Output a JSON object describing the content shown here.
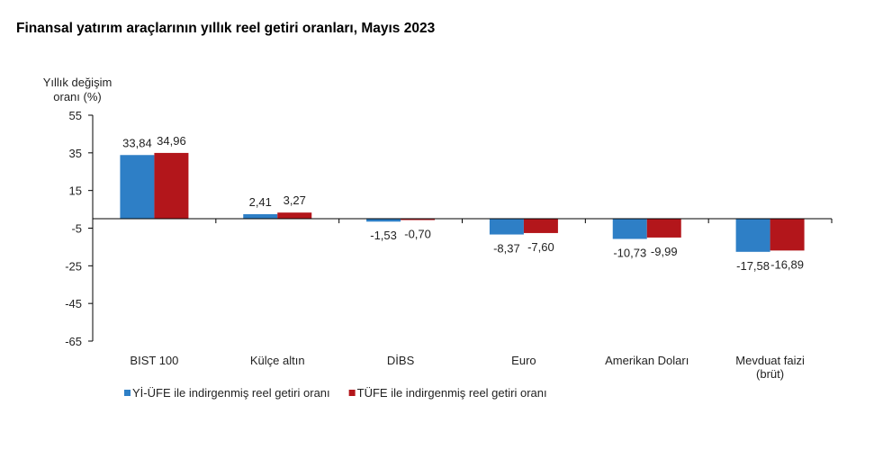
{
  "chart_data": {
    "type": "bar",
    "title": "Finansal yatırım araçlarının yıllık reel getiri oranları, Mayıs 2023",
    "ylabel": [
      "Yıllık değişim",
      "oranı (%)"
    ],
    "xlabel": "",
    "ylim": [
      -65,
      55
    ],
    "yticks": [
      55,
      35,
      15,
      -5,
      -25,
      -45,
      -65
    ],
    "grid": false,
    "legend_position": "bottom-left",
    "categories": [
      [
        "BIST 100"
      ],
      [
        "Külçe altın"
      ],
      [
        "DİBS"
      ],
      [
        "Euro"
      ],
      [
        "Amerikan Doları"
      ],
      [
        "Mevduat faizi",
        "(brüt)"
      ]
    ],
    "series": [
      {
        "name": "Yİ-ÜFE ile indirgenmiş reel getiri oranı",
        "color": "#2e7fc6",
        "values": [
          33.84,
          2.41,
          -1.53,
          -8.37,
          -10.73,
          -17.58
        ],
        "labels": [
          "33,84",
          "2,41",
          "-1,53",
          "-8,37",
          "-10,73",
          "-17,58"
        ]
      },
      {
        "name": "TÜFE ile indirgenmiş reel getiri oranı",
        "color": "#b3161b",
        "values": [
          34.96,
          3.27,
          -0.7,
          -7.6,
          -9.99,
          -16.89
        ],
        "labels": [
          "34,96",
          "3,27",
          "-0,70",
          "-7,60",
          "-9,99",
          "-16,89"
        ]
      }
    ]
  }
}
